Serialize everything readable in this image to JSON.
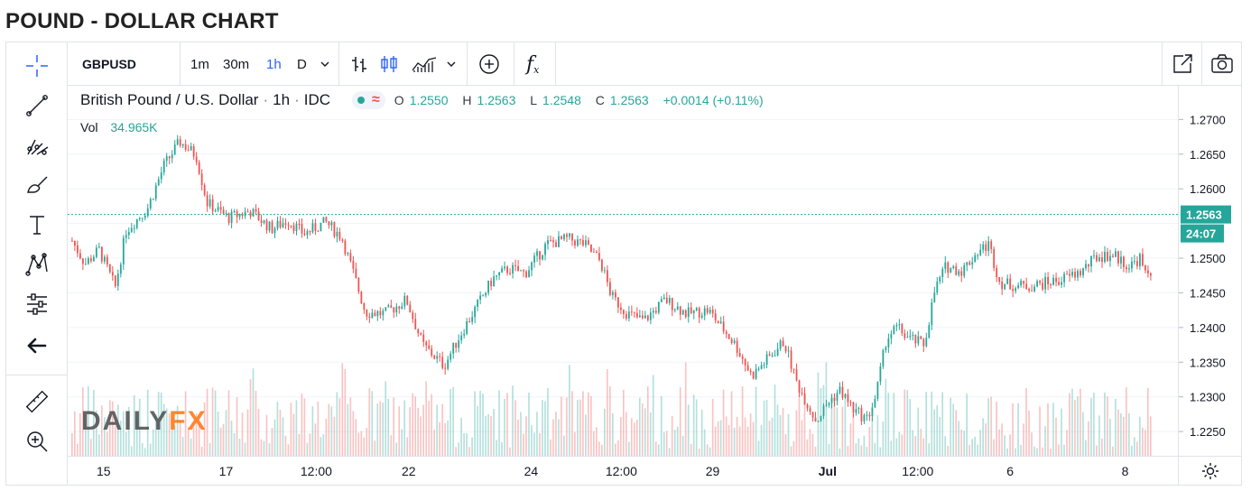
{
  "page": {
    "title": "POUND - DOLLAR CHART"
  },
  "toolbar": {
    "symbol": "GBPUSD",
    "intervals": [
      "1m",
      "30m",
      "1h",
      "D"
    ],
    "active_interval": "1h",
    "fx_label": "f"
  },
  "legend": {
    "instrument": "British Pound / U.S. Dollar",
    "interval": "1h",
    "source": "IDC",
    "separator": "·",
    "o_label": "O",
    "o_value": "1.2550",
    "h_label": "H",
    "h_value": "1.2563",
    "l_label": "L",
    "l_value": "1.2548",
    "c_label": "C",
    "c_value": "1.2563",
    "change": "+0.0014 (+0.11%)",
    "vol_label": "Vol",
    "vol_value": "34.965K"
  },
  "logo": {
    "part1": "DAILY",
    "part2": "FX"
  },
  "colors": {
    "up": "#26a69a",
    "down": "#ef5350",
    "accent": "#2962ff",
    "logo_fx": "#ff7a1a"
  },
  "icons": {
    "left_bar": [
      "crosshair-icon",
      "trendline-icon",
      "pitchfork-icon",
      "brush-icon",
      "text-icon",
      "pattern-icon",
      "measure-settings-icon",
      "back-arrow-icon",
      "ruler-icon",
      "zoom-in-icon"
    ],
    "top_bar": [
      "bar-style-icon",
      "candle-style-icon",
      "indicators-icon",
      "chevron-down-icon",
      "add-icon",
      "function-icon",
      "popout-icon",
      "camera-icon"
    ],
    "corner": "settings-gear-icon"
  },
  "chart_data": {
    "type": "candlestick",
    "instrument": "GBPUSD",
    "interval": "1h",
    "y_ticks": [
      1.27,
      1.265,
      1.26,
      1.255,
      1.25,
      1.245,
      1.24,
      1.235,
      1.23,
      1.225
    ],
    "y_tick_labels": [
      "1.2700",
      "1.2650",
      "1.2600",
      "",
      "1.2500",
      "1.2450",
      "1.2400",
      "1.2350",
      "1.2300",
      "1.2250"
    ],
    "ylim": [
      1.2215,
      1.272
    ],
    "x_tick_labels": [
      "15",
      "17",
      "12:00",
      "22",
      "24",
      "12:00",
      "29",
      "Jul",
      "12:00",
      "6",
      "8"
    ],
    "x_tick_positions": [
      0.02,
      0.134,
      0.218,
      0.304,
      0.418,
      0.502,
      0.587,
      0.694,
      0.778,
      0.864,
      0.971
    ],
    "last_price": 1.2563,
    "last_price_label": "1.2563",
    "countdown_label": "24:07",
    "volume_last": "34.965K",
    "path_anchors": [
      [
        0,
        1.2525
      ],
      [
        0.012,
        1.2492
      ],
      [
        0.025,
        1.2512
      ],
      [
        0.04,
        1.2458
      ],
      [
        0.05,
        1.254
      ],
      [
        0.07,
        1.2572
      ],
      [
        0.085,
        1.2633
      ],
      [
        0.1,
        1.2668
      ],
      [
        0.115,
        1.2648
      ],
      [
        0.125,
        1.258
      ],
      [
        0.145,
        1.2558
      ],
      [
        0.165,
        1.2568
      ],
      [
        0.185,
        1.2542
      ],
      [
        0.2,
        1.2555
      ],
      [
        0.215,
        1.2535
      ],
      [
        0.235,
        1.2552
      ],
      [
        0.25,
        1.253
      ],
      [
        0.262,
        1.2472
      ],
      [
        0.272,
        1.2422
      ],
      [
        0.29,
        1.242
      ],
      [
        0.31,
        1.244
      ],
      [
        0.325,
        1.2375
      ],
      [
        0.345,
        1.2345
      ],
      [
        0.36,
        1.239
      ],
      [
        0.375,
        1.243
      ],
      [
        0.39,
        1.247
      ],
      [
        0.405,
        1.2485
      ],
      [
        0.42,
        1.2478
      ],
      [
        0.44,
        1.252
      ],
      [
        0.46,
        1.2528
      ],
      [
        0.475,
        1.252
      ],
      [
        0.49,
        1.2495
      ],
      [
        0.5,
        1.2445
      ],
      [
        0.515,
        1.242
      ],
      [
        0.53,
        1.241
      ],
      [
        0.55,
        1.244
      ],
      [
        0.57,
        1.242
      ],
      [
        0.59,
        1.2425
      ],
      [
        0.6,
        1.2405
      ],
      [
        0.615,
        1.2375
      ],
      [
        0.63,
        1.233
      ],
      [
        0.645,
        1.2355
      ],
      [
        0.66,
        1.238
      ],
      [
        0.672,
        1.232
      ],
      [
        0.68,
        1.2295
      ],
      [
        0.69,
        1.2265
      ],
      [
        0.7,
        1.229
      ],
      [
        0.712,
        1.231
      ],
      [
        0.725,
        1.228
      ],
      [
        0.737,
        1.2268
      ],
      [
        0.745,
        1.23
      ],
      [
        0.755,
        1.2385
      ],
      [
        0.765,
        1.24
      ],
      [
        0.775,
        1.2385
      ],
      [
        0.79,
        1.2375
      ],
      [
        0.8,
        1.2455
      ],
      [
        0.81,
        1.2488
      ],
      [
        0.825,
        1.2482
      ],
      [
        0.84,
        1.251
      ],
      [
        0.85,
        1.252
      ],
      [
        0.86,
        1.2465
      ],
      [
        0.875,
        1.246
      ],
      [
        0.89,
        1.246
      ],
      [
        0.905,
        1.2465
      ],
      [
        0.915,
        1.2468
      ],
      [
        0.935,
        1.248
      ],
      [
        0.95,
        1.2502
      ],
      [
        0.965,
        1.2505
      ],
      [
        0.98,
        1.2488
      ],
      [
        0.99,
        1.25
      ],
      [
        0.995,
        1.2475
      ],
      [
        1.0,
        1.248
      ]
    ]
  }
}
